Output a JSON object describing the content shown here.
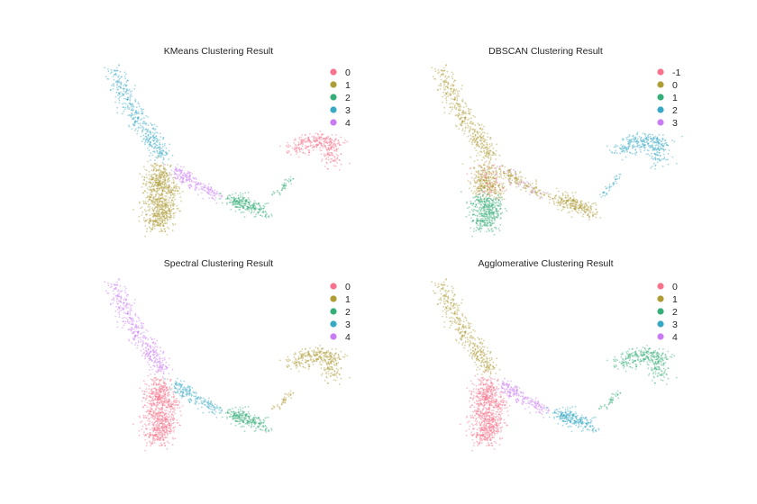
{
  "palette": [
    "#f7728a",
    "#ae9c35",
    "#35ae78",
    "#38a8c4",
    "#c97bf4"
  ],
  "chart_data": [
    {
      "type": "scatter",
      "title": "KMeans Clustering Result",
      "legend_position": "top-right",
      "legend": [
        "0",
        "1",
        "2",
        "3",
        "4"
      ],
      "region_labels": {
        "arm": "3",
        "lobe_upper": "1",
        "lobe_lower": "1",
        "bridge": "4",
        "mid_blob": "2",
        "link": "2",
        "right_blob": "0"
      }
    },
    {
      "type": "scatter",
      "title": "DBSCAN Clustering Result",
      "legend_position": "top-right",
      "legend": [
        "-1",
        "0",
        "1",
        "2",
        "3"
      ],
      "region_labels": {
        "arm": "0",
        "lobe_upper": "0",
        "lobe_lower": "1",
        "bridge": "0",
        "mid_blob": "0",
        "link": "2",
        "right_blob": "2"
      }
    },
    {
      "type": "scatter",
      "title": "Spectral Clustering Result",
      "legend_position": "top-right",
      "legend": [
        "0",
        "1",
        "2",
        "3",
        "4"
      ],
      "region_labels": {
        "arm": "4",
        "lobe_upper": "0",
        "lobe_lower": "0",
        "bridge": "3",
        "mid_blob": "2",
        "link": "1",
        "right_blob": "1"
      }
    },
    {
      "type": "scatter",
      "title": "Agglomerative Clustering Result",
      "legend_position": "top-right",
      "legend": [
        "0",
        "1",
        "2",
        "3",
        "4"
      ],
      "region_labels": {
        "arm": "1",
        "lobe_upper": "0",
        "lobe_lower": "0",
        "bridge": "4",
        "mid_blob": "3",
        "link": "2",
        "right_blob": "2"
      }
    }
  ],
  "regions": {
    "arm": {
      "path": [
        [
          0.4,
          9.7
        ],
        [
          1.0,
          7.8
        ],
        [
          1.8,
          6.0
        ],
        [
          2.4,
          4.6
        ]
      ],
      "spread": 0.35
    },
    "lobe_upper": {
      "path": [
        [
          2.3,
          4.0
        ],
        [
          2.1,
          3.0
        ],
        [
          2.6,
          2.6
        ]
      ],
      "spread": 0.5
    },
    "lobe_lower": {
      "path": [
        [
          2.0,
          2.1
        ],
        [
          2.5,
          1.4
        ],
        [
          2.0,
          0.6
        ]
      ],
      "spread": 0.5
    },
    "bridge": {
      "path": [
        [
          2.9,
          3.9
        ],
        [
          3.6,
          3.1
        ],
        [
          4.6,
          2.3
        ]
      ],
      "spread": 0.28
    },
    "mid_blob": {
      "path": [
        [
          5.1,
          2.2
        ],
        [
          5.8,
          1.8
        ],
        [
          6.5,
          1.4
        ]
      ],
      "spread": 0.35
    },
    "link": {
      "path": [
        [
          6.9,
          2.3
        ],
        [
          7.6,
          3.5
        ]
      ],
      "spread": 0.12
    },
    "right_blob": {
      "path": [
        [
          7.6,
          4.9
        ],
        [
          8.4,
          5.6
        ],
        [
          9.3,
          5.5
        ],
        [
          9.1,
          4.2
        ]
      ],
      "spread": 0.4
    }
  },
  "domain": {
    "x": [
      0,
      10
    ],
    "y": [
      0,
      10
    ]
  }
}
